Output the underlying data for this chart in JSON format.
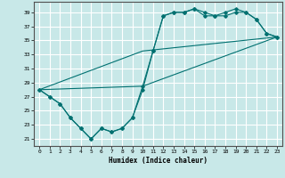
{
  "title": "",
  "xlabel": "Humidex (Indice chaleur)",
  "background_color": "#c8e8e8",
  "grid_color": "#ffffff",
  "line_color": "#007070",
  "xlim": [
    -0.5,
    23.5
  ],
  "ylim": [
    20,
    40.5
  ],
  "yticks": [
    21,
    23,
    25,
    27,
    29,
    31,
    33,
    35,
    37,
    39
  ],
  "xticks": [
    0,
    1,
    2,
    3,
    4,
    5,
    6,
    7,
    8,
    9,
    10,
    11,
    12,
    13,
    14,
    15,
    16,
    17,
    18,
    19,
    20,
    21,
    22,
    23
  ],
  "series1_x": [
    0,
    1,
    2,
    3,
    4,
    5,
    6,
    7,
    8,
    9,
    10,
    11,
    12,
    13,
    14,
    15,
    16,
    17,
    18,
    19,
    20,
    21,
    22,
    23
  ],
  "series1_y": [
    28,
    27,
    26,
    24,
    22.5,
    21,
    22.5,
    22,
    22.5,
    24,
    28,
    33.5,
    38.5,
    39,
    39,
    39.5,
    39,
    38.5,
    39,
    39.5,
    39,
    38,
    36,
    35.5
  ],
  "series2_x": [
    0,
    1,
    2,
    3,
    4,
    5,
    6,
    7,
    8,
    9,
    10,
    11,
    12,
    13,
    14,
    15,
    16,
    17,
    18,
    19,
    20,
    21,
    22,
    23
  ],
  "series2_y": [
    28,
    27,
    26,
    24,
    22.5,
    21,
    22.5,
    22,
    22.5,
    24,
    28.5,
    33.5,
    38.5,
    39,
    39,
    39.5,
    38.5,
    38.5,
    38.5,
    39,
    39,
    38,
    36,
    35.5
  ],
  "series3_x": [
    0,
    10,
    23
  ],
  "series3_y": [
    28,
    28.5,
    35.5
  ],
  "series4_x": [
    0,
    10,
    23
  ],
  "series4_y": [
    28,
    33.5,
    35.5
  ]
}
